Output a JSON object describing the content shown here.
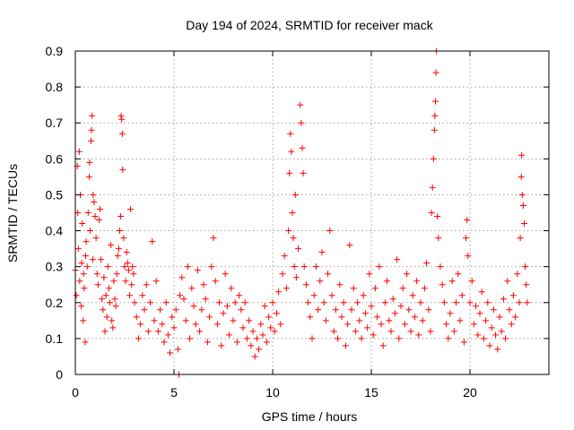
{
  "chart_data": {
    "type": "scatter",
    "title": "Day 194 of 2024, SRMTID for receiver mack",
    "xlabel": "GPS time / hours",
    "ylabel": "SRMTID / TECUs",
    "xlim": [
      0,
      24
    ],
    "ylim": [
      0,
      0.9
    ],
    "x_ticks": [
      0,
      5,
      10,
      15,
      20
    ],
    "x_tick_labels": [
      "0",
      "5",
      "10",
      "15",
      "20"
    ],
    "y_ticks": [
      0,
      0.1,
      0.2,
      0.3,
      0.4,
      0.5,
      0.6,
      0.7,
      0.8,
      0.9
    ],
    "y_tick_labels": [
      "0",
      "0.1",
      "0.2",
      "0.3",
      "0.4",
      "0.5",
      "0.6",
      "0.7",
      "0.8",
      "0.9"
    ],
    "grid": true,
    "marker": "+",
    "series": [
      {
        "name": "SRMTID",
        "color": "#ff0000",
        "points": [
          [
            0.0,
            0.29
          ],
          [
            0.05,
            0.22
          ],
          [
            0.1,
            0.58
          ],
          [
            0.12,
            0.45
          ],
          [
            0.15,
            0.35
          ],
          [
            0.2,
            0.62
          ],
          [
            0.22,
            0.26
          ],
          [
            0.25,
            0.5
          ],
          [
            0.3,
            0.19
          ],
          [
            0.32,
            0.31
          ],
          [
            0.35,
            0.42
          ],
          [
            0.4,
            0.15
          ],
          [
            0.42,
            0.28
          ],
          [
            0.45,
            0.24
          ],
          [
            0.5,
            0.09
          ],
          [
            0.52,
            0.33
          ],
          [
            0.55,
            0.37
          ],
          [
            0.6,
            0.3
          ],
          [
            0.65,
            0.45
          ],
          [
            0.7,
            0.55
          ],
          [
            0.72,
            0.59
          ],
          [
            0.75,
            0.4
          ],
          [
            0.8,
            0.65
          ],
          [
            0.82,
            0.68
          ],
          [
            0.85,
            0.72
          ],
          [
            0.88,
            0.32
          ],
          [
            0.9,
            0.5
          ],
          [
            0.95,
            0.48
          ],
          [
            1.0,
            0.44
          ],
          [
            1.05,
            0.38
          ],
          [
            1.1,
            0.28
          ],
          [
            1.15,
            0.25
          ],
          [
            1.2,
            0.43
          ],
          [
            1.25,
            0.46
          ],
          [
            1.3,
            0.32
          ],
          [
            1.35,
            0.21
          ],
          [
            1.4,
            0.18
          ],
          [
            1.45,
            0.27
          ],
          [
            1.5,
            0.12
          ],
          [
            1.55,
            0.22
          ],
          [
            1.6,
            0.16
          ],
          [
            1.65,
            0.3
          ],
          [
            1.7,
            0.24
          ],
          [
            1.75,
            0.2
          ],
          [
            1.8,
            0.36
          ],
          [
            1.85,
            0.15
          ],
          [
            1.9,
            0.13
          ],
          [
            1.95,
            0.26
          ],
          [
            2.0,
            0.21
          ],
          [
            2.05,
            0.19
          ],
          [
            2.1,
            0.28
          ],
          [
            2.15,
            0.33
          ],
          [
            2.2,
            0.35
          ],
          [
            2.25,
            0.4
          ],
          [
            2.3,
            0.44
          ],
          [
            2.32,
            0.72
          ],
          [
            2.35,
            0.71
          ],
          [
            2.38,
            0.67
          ],
          [
            2.4,
            0.57
          ],
          [
            2.45,
            0.38
          ],
          [
            2.5,
            0.3
          ],
          [
            2.55,
            0.26
          ],
          [
            2.6,
            0.34
          ],
          [
            2.65,
            0.31
          ],
          [
            2.7,
            0.29
          ],
          [
            2.75,
            0.22
          ],
          [
            2.8,
            0.46
          ],
          [
            2.85,
            0.25
          ],
          [
            2.9,
            0.3
          ],
          [
            2.95,
            0.28
          ],
          [
            3.0,
            0.2
          ],
          [
            3.1,
            0.16
          ],
          [
            3.2,
            0.1
          ],
          [
            3.3,
            0.14
          ],
          [
            3.4,
            0.22
          ],
          [
            3.5,
            0.18
          ],
          [
            3.6,
            0.25
          ],
          [
            3.7,
            0.12
          ],
          [
            3.8,
            0.2
          ],
          [
            3.9,
            0.37
          ],
          [
            4.0,
            0.15
          ],
          [
            4.1,
            0.26
          ],
          [
            4.2,
            0.12
          ],
          [
            4.3,
            0.18
          ],
          [
            4.4,
            0.14
          ],
          [
            4.5,
            0.09
          ],
          [
            4.6,
            0.2
          ],
          [
            4.7,
            0.11
          ],
          [
            4.8,
            0.06
          ],
          [
            4.9,
            0.16
          ],
          [
            5.0,
            0.13
          ],
          [
            5.1,
            0.18
          ],
          [
            5.2,
            0.07
          ],
          [
            5.25,
            0.0
          ],
          [
            5.3,
            0.22
          ],
          [
            5.4,
            0.27
          ],
          [
            5.5,
            0.21
          ],
          [
            5.6,
            0.15
          ],
          [
            5.7,
            0.3
          ],
          [
            5.8,
            0.1
          ],
          [
            5.9,
            0.24
          ],
          [
            6.0,
            0.19
          ],
          [
            6.1,
            0.14
          ],
          [
            6.2,
            0.29
          ],
          [
            6.3,
            0.12
          ],
          [
            6.4,
            0.18
          ],
          [
            6.5,
            0.25
          ],
          [
            6.6,
            0.21
          ],
          [
            6.7,
            0.09
          ],
          [
            6.8,
            0.16
          ],
          [
            6.9,
            0.3
          ],
          [
            7.0,
            0.38
          ],
          [
            7.1,
            0.26
          ],
          [
            7.2,
            0.14
          ],
          [
            7.3,
            0.2
          ],
          [
            7.4,
            0.08
          ],
          [
            7.5,
            0.17
          ],
          [
            7.6,
            0.28
          ],
          [
            7.7,
            0.19
          ],
          [
            7.8,
            0.11
          ],
          [
            7.9,
            0.24
          ],
          [
            8.0,
            0.15
          ],
          [
            8.1,
            0.2
          ],
          [
            8.2,
            0.09
          ],
          [
            8.3,
            0.22
          ],
          [
            8.4,
            0.18
          ],
          [
            8.5,
            0.13
          ],
          [
            8.6,
            0.2
          ],
          [
            8.7,
            0.1
          ],
          [
            8.8,
            0.15
          ],
          [
            8.9,
            0.08
          ],
          [
            9.0,
            0.12
          ],
          [
            9.1,
            0.05
          ],
          [
            9.2,
            0.1
          ],
          [
            9.3,
            0.07
          ],
          [
            9.4,
            0.14
          ],
          [
            9.5,
            0.11
          ],
          [
            9.6,
            0.19
          ],
          [
            9.7,
            0.09
          ],
          [
            9.8,
            0.16
          ],
          [
            9.9,
            0.13
          ],
          [
            10.0,
            0.2
          ],
          [
            10.1,
            0.12
          ],
          [
            10.2,
            0.17
          ],
          [
            10.3,
            0.23
          ],
          [
            10.4,
            0.14
          ],
          [
            10.5,
            0.28
          ],
          [
            10.6,
            0.33
          ],
          [
            10.7,
            0.24
          ],
          [
            10.8,
            0.4
          ],
          [
            10.85,
            0.56
          ],
          [
            10.9,
            0.67
          ],
          [
            10.95,
            0.62
          ],
          [
            11.0,
            0.45
          ],
          [
            11.05,
            0.38
          ],
          [
            11.1,
            0.3
          ],
          [
            11.15,
            0.5
          ],
          [
            11.2,
            0.27
          ],
          [
            11.3,
            0.35
          ],
          [
            11.4,
            0.75
          ],
          [
            11.45,
            0.7
          ],
          [
            11.5,
            0.63
          ],
          [
            11.55,
            0.56
          ],
          [
            11.6,
            0.3
          ],
          [
            11.7,
            0.25
          ],
          [
            11.8,
            0.2
          ],
          [
            11.9,
            0.16
          ],
          [
            12.0,
            0.1
          ],
          [
            12.1,
            0.22
          ],
          [
            12.2,
            0.3
          ],
          [
            12.3,
            0.18
          ],
          [
            12.4,
            0.26
          ],
          [
            12.5,
            0.34
          ],
          [
            12.6,
            0.2
          ],
          [
            12.7,
            0.15
          ],
          [
            12.8,
            0.28
          ],
          [
            12.9,
            0.4
          ],
          [
            13.0,
            0.22
          ],
          [
            13.1,
            0.12
          ],
          [
            13.2,
            0.18
          ],
          [
            13.3,
            0.1
          ],
          [
            13.4,
            0.25
          ],
          [
            13.5,
            0.16
          ],
          [
            13.6,
            0.2
          ],
          [
            13.7,
            0.08
          ],
          [
            13.8,
            0.14
          ],
          [
            13.9,
            0.36
          ],
          [
            14.0,
            0.18
          ],
          [
            14.1,
            0.24
          ],
          [
            14.2,
            0.12
          ],
          [
            14.3,
            0.2
          ],
          [
            14.4,
            0.15
          ],
          [
            14.5,
            0.1
          ],
          [
            14.6,
            0.22
          ],
          [
            14.7,
            0.17
          ],
          [
            14.8,
            0.13
          ],
          [
            14.9,
            0.28
          ],
          [
            15.0,
            0.19
          ],
          [
            15.1,
            0.11
          ],
          [
            15.2,
            0.24
          ],
          [
            15.3,
            0.16
          ],
          [
            15.4,
            0.3
          ],
          [
            15.5,
            0.14
          ],
          [
            15.6,
            0.08
          ],
          [
            15.7,
            0.2
          ],
          [
            15.8,
            0.26
          ],
          [
            15.9,
            0.15
          ],
          [
            16.0,
            0.12
          ],
          [
            16.1,
            0.21
          ],
          [
            16.2,
            0.17
          ],
          [
            16.3,
            0.32
          ],
          [
            16.4,
            0.1
          ],
          [
            16.5,
            0.19
          ],
          [
            16.6,
            0.24
          ],
          [
            16.7,
            0.14
          ],
          [
            16.8,
            0.28
          ],
          [
            16.9,
            0.18
          ],
          [
            17.0,
            0.12
          ],
          [
            17.1,
            0.22
          ],
          [
            17.2,
            0.16
          ],
          [
            17.3,
            0.26
          ],
          [
            17.4,
            0.11
          ],
          [
            17.5,
            0.2
          ],
          [
            17.6,
            0.15
          ],
          [
            17.7,
            0.24
          ],
          [
            17.8,
            0.31
          ],
          [
            17.9,
            0.18
          ],
          [
            18.0,
            0.12
          ],
          [
            18.05,
            0.45
          ],
          [
            18.1,
            0.52
          ],
          [
            18.15,
            0.6
          ],
          [
            18.2,
            0.68
          ],
          [
            18.22,
            0.72
          ],
          [
            18.25,
            0.76
          ],
          [
            18.28,
            0.84
          ],
          [
            18.3,
            0.9
          ],
          [
            18.35,
            0.44
          ],
          [
            18.4,
            0.38
          ],
          [
            18.5,
            0.3
          ],
          [
            18.6,
            0.25
          ],
          [
            18.7,
            0.2
          ],
          [
            18.8,
            0.14
          ],
          [
            18.9,
            0.1
          ],
          [
            19.0,
            0.17
          ],
          [
            19.1,
            0.26
          ],
          [
            19.2,
            0.12
          ],
          [
            19.3,
            0.2
          ],
          [
            19.4,
            0.28
          ],
          [
            19.5,
            0.15
          ],
          [
            19.6,
            0.22
          ],
          [
            19.7,
            0.09
          ],
          [
            19.8,
            0.38
          ],
          [
            19.85,
            0.43
          ],
          [
            19.9,
            0.33
          ],
          [
            20.0,
            0.2
          ],
          [
            20.1,
            0.26
          ],
          [
            20.2,
            0.14
          ],
          [
            20.3,
            0.19
          ],
          [
            20.4,
            0.11
          ],
          [
            20.5,
            0.17
          ],
          [
            20.6,
            0.23
          ],
          [
            20.7,
            0.1
          ],
          [
            20.8,
            0.15
          ],
          [
            20.9,
            0.2
          ],
          [
            21.0,
            0.08
          ],
          [
            21.1,
            0.13
          ],
          [
            21.2,
            0.18
          ],
          [
            21.3,
            0.11
          ],
          [
            21.4,
            0.07
          ],
          [
            21.5,
            0.16
          ],
          [
            21.6,
            0.12
          ],
          [
            21.7,
            0.21
          ],
          [
            21.8,
            0.1
          ],
          [
            21.9,
            0.26
          ],
          [
            22.0,
            0.18
          ],
          [
            22.1,
            0.14
          ],
          [
            22.2,
            0.22
          ],
          [
            22.3,
            0.16
          ],
          [
            22.4,
            0.28
          ],
          [
            22.5,
            0.2
          ],
          [
            22.55,
            0.38
          ],
          [
            22.6,
            0.55
          ],
          [
            22.62,
            0.61
          ],
          [
            22.65,
            0.5
          ],
          [
            22.7,
            0.47
          ],
          [
            22.75,
            0.42
          ],
          [
            22.8,
            0.3
          ],
          [
            22.85,
            0.25
          ],
          [
            22.9,
            0.2
          ]
        ]
      }
    ]
  }
}
